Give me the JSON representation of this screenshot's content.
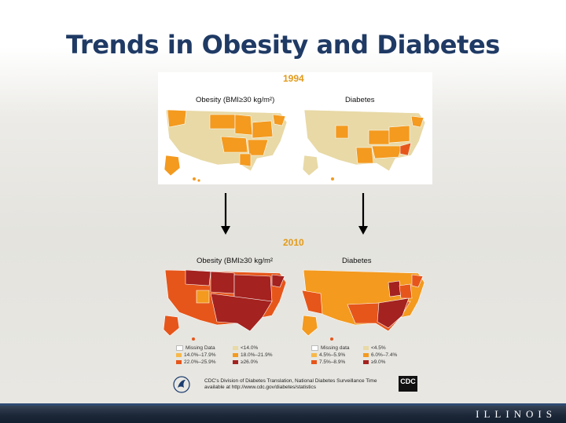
{
  "slide": {
    "title": "Trends in Obesity and Diabetes"
  },
  "panel_1994": {
    "year": "1994",
    "obesity_title": "Obesity (BMI≥30 kg/m²)",
    "diabetes_title": "Diabetes"
  },
  "panel_2010": {
    "year": "2010",
    "obesity_title": "Obesity (BMI≥30 kg/m²",
    "diabetes_title": "Diabetes"
  },
  "legend_obesity": {
    "items": [
      {
        "label": "Missing Data",
        "color": "#ffffff"
      },
      {
        "label": "<14.0%",
        "color": "#e8d9a6"
      },
      {
        "label": "14.0%–17.9%",
        "color": "#f7b84a"
      },
      {
        "label": "18.0%–21.9%",
        "color": "#f39a1f"
      },
      {
        "label": "22.0%–25.9%",
        "color": "#e6561a"
      },
      {
        "label": "≥26.0%",
        "color": "#a4221f"
      }
    ]
  },
  "legend_diabetes": {
    "items": [
      {
        "label": "Missing data",
        "color": "#ffffff"
      },
      {
        "label": "<4.5%",
        "color": "#e8d9a6"
      },
      {
        "label": "4.5%–5.9%",
        "color": "#f7b84a"
      },
      {
        "label": "6.0%–7.4%",
        "color": "#f39a1f"
      },
      {
        "label": "7.5%–8.9%",
        "color": "#e6561a"
      },
      {
        "label": "≥9.0%",
        "color": "#a4221f"
      }
    ]
  },
  "source": {
    "line1": "CDC's Division of Diabetes Translation, National Diabetes Surveillance Time",
    "line2": "available at http://www.cdc.gov/diabetes/statistics",
    "cdc_logo": "CDC"
  },
  "footer": {
    "brand": "ILLINOIS"
  },
  "colors": {
    "title": "#1f3a64",
    "year": "#e39b1b",
    "low": "#e8d9a6",
    "mid": "#f7b84a",
    "midhigh": "#f39a1f",
    "high": "#e6561a",
    "top": "#a4221f"
  }
}
